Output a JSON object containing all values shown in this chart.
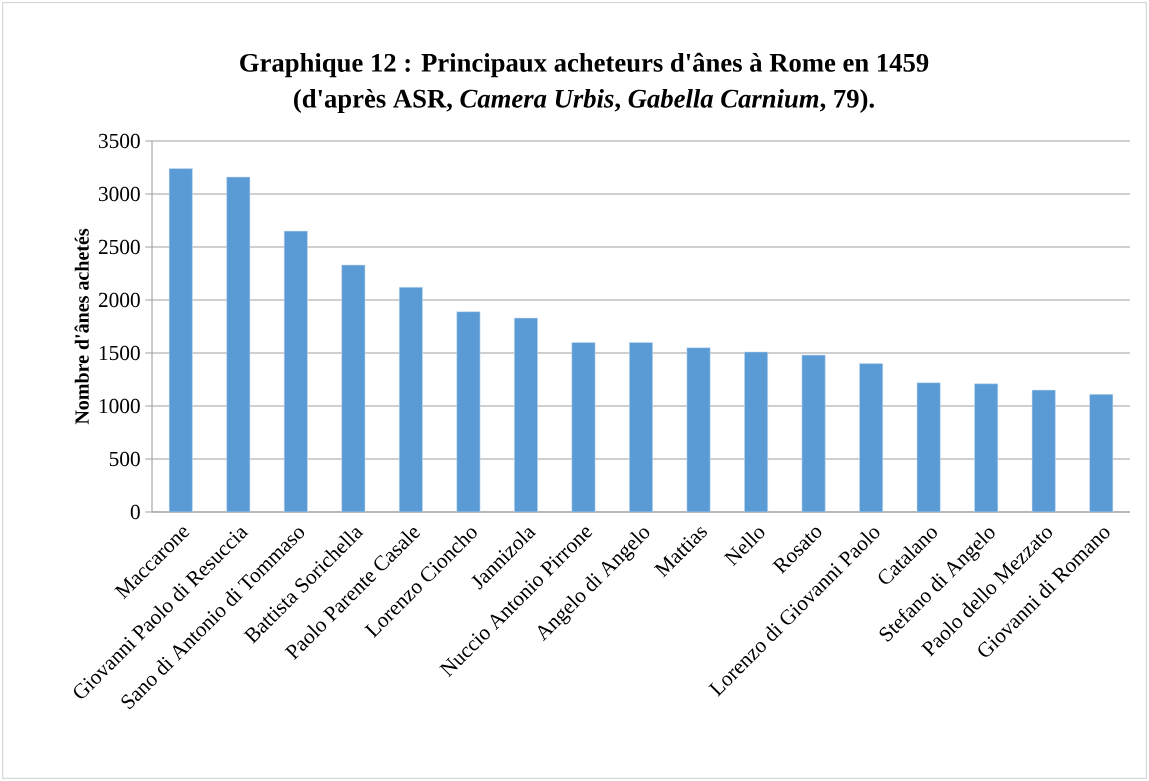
{
  "chart_data": {
    "type": "bar",
    "title": "Graphique 12 : Principaux acheteurs d'ânes à Rome en 1459",
    "subtitle": "(d'après ASR, *Camera Urbis*, *Gabella Carnium*, 79).",
    "ylabel": "Nombre d'ânes achetés",
    "categories": [
      "Maccarone",
      "Giovanni Paolo di Resuccia",
      "Sano di Antonio di Tommaso",
      "Battista Sorichella",
      "Paolo Parente Casale",
      "Lorenzo Cioncho",
      "Jannizola",
      "Nuccio Antonio Pirrone",
      "Angelo di Angelo",
      "Mattias",
      "Nello",
      "Rosato",
      "Lorenzo di Giovanni Paolo",
      "Catalano",
      "Stefano di Angelo",
      "Paolo dello Mezzato",
      "Giovanni di Romano"
    ],
    "values": [
      3240,
      3160,
      2650,
      2330,
      2120,
      1890,
      1830,
      1600,
      1600,
      1550,
      1510,
      1480,
      1400,
      1220,
      1210,
      1150,
      1110
    ],
    "color": "#5b9bd5",
    "ylim": [
      0,
      3500
    ],
    "yticks": [
      0,
      500,
      1000,
      1500,
      2000,
      2500,
      3000,
      3500
    ],
    "grid": "y"
  }
}
